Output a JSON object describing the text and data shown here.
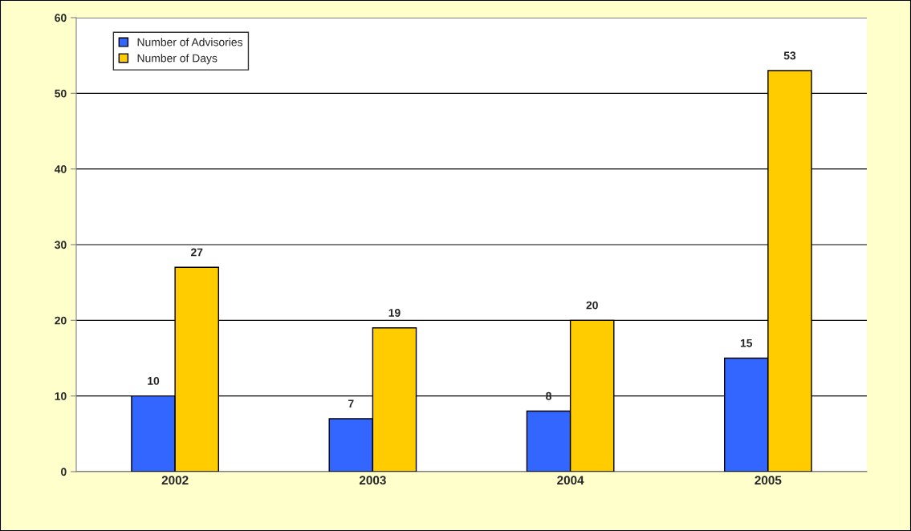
{
  "chart_data": {
    "type": "bar",
    "categories": [
      "2002",
      "2003",
      "2004",
      "2005"
    ],
    "series": [
      {
        "name": "Number of Advisories",
        "color": "#3366ff",
        "values": [
          10,
          7,
          8,
          15
        ]
      },
      {
        "name": "Number of Days",
        "color": "#ffcc00",
        "values": [
          27,
          19,
          20,
          53
        ]
      }
    ],
    "ylim": [
      0,
      60
    ],
    "yticks": [
      0,
      10,
      20,
      30,
      40,
      50,
      60
    ],
    "grid": "y",
    "legend": "top left",
    "data_labels": true
  }
}
